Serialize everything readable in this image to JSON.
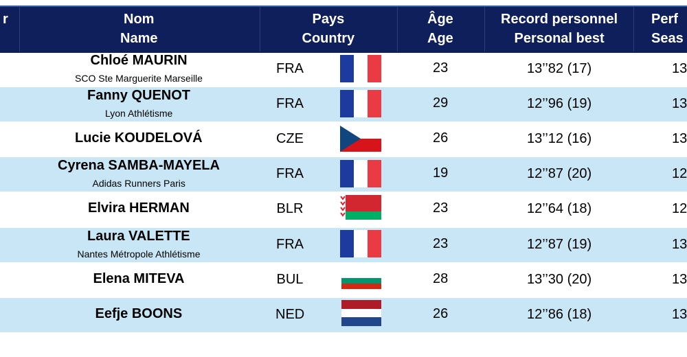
{
  "header": {
    "col0": "r",
    "name": [
      "Nom",
      "Name"
    ],
    "country": [
      "Pays",
      "Country"
    ],
    "age": [
      "Âge",
      "Age"
    ],
    "pb": [
      "Record personnel",
      "Personal best"
    ],
    "sb": [
      "Perf",
      "Seas"
    ]
  },
  "rows": [
    {
      "name": "Chloé MAURIN",
      "club": "SCO Ste Marguerite Marseille",
      "country": "FRA",
      "age": "23",
      "pb": "13’’82 (17)",
      "sb": "13"
    },
    {
      "name": "Fanny QUENOT",
      "club": "Lyon Athlétisme",
      "country": "FRA",
      "age": "29",
      "pb": "12’’96 (19)",
      "sb": "13"
    },
    {
      "name": "Lucie KOUDELOVÁ",
      "country": "CZE",
      "age": "26",
      "pb": "13’’12 (16)",
      "sb": "13"
    },
    {
      "name": "Cyrena SAMBA-MAYELA",
      "club": "Adidas Runners Paris",
      "country": "FRA",
      "age": "19",
      "pb": "12’’87 (20)",
      "sb": "12"
    },
    {
      "name": "Elvira HERMAN",
      "country": "BLR",
      "age": "23",
      "pb": "12’’64 (18)",
      "sb": "12"
    },
    {
      "name": "Laura VALETTE",
      "club": "Nantes Métropole Athlétisme",
      "country": "FRA",
      "age": "23",
      "pb": "12’’87 (19)",
      "sb": "13"
    },
    {
      "name": "Elena MITEVA",
      "country": "BUL",
      "age": "28",
      "pb": "13’’30 (20)",
      "sb": "13"
    },
    {
      "name": "Eefje BOONS",
      "country": "NED",
      "age": "26",
      "pb": "12’’86 (18)",
      "sb": "13"
    }
  ]
}
